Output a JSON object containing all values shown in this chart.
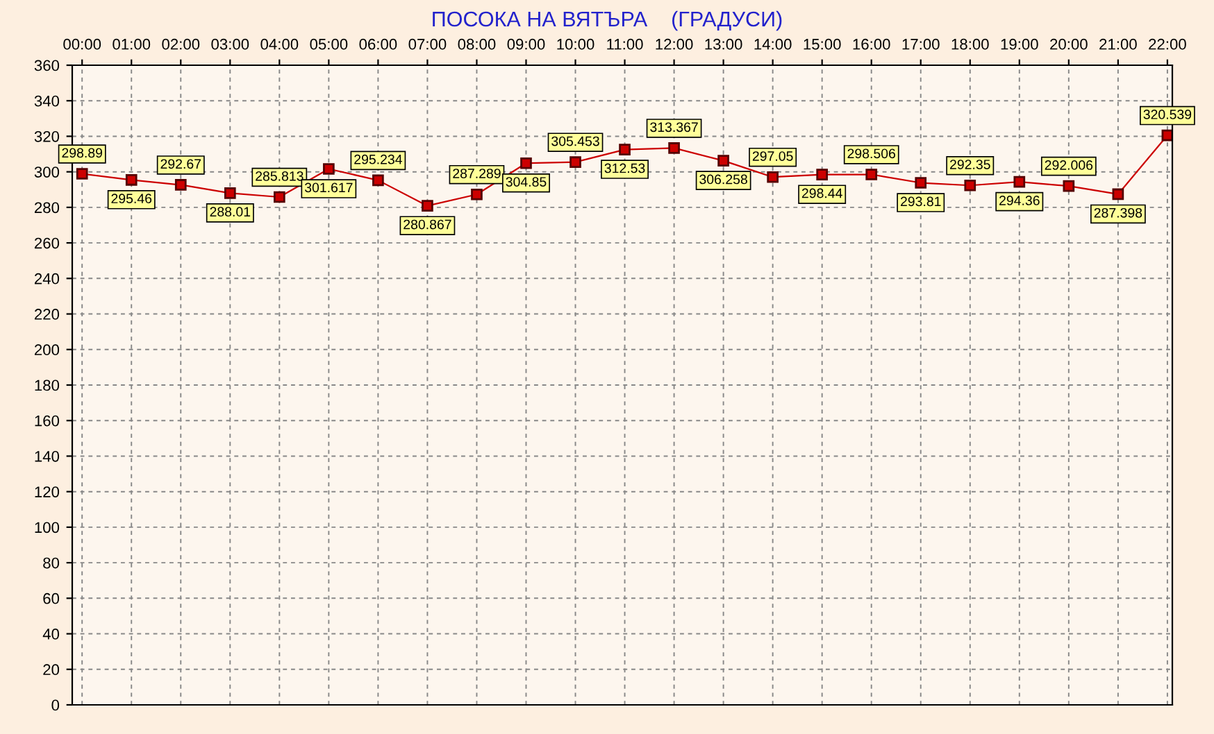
{
  "chart_data": {
    "type": "line",
    "title": "ПОСОКА НА ВЯТЪРА    (ГРАДУСИ)",
    "categories": [
      "00:00",
      "01:00",
      "02:00",
      "03:00",
      "04:00",
      "05:00",
      "06:00",
      "07:00",
      "08:00",
      "09:00",
      "10:00",
      "11:00",
      "12:00",
      "13:00",
      "14:00",
      "15:00",
      "16:00",
      "17:00",
      "18:00",
      "19:00",
      "20:00",
      "21:00",
      "22:00"
    ],
    "series": [
      {
        "color": "#cc0000",
        "values": [
          298.89,
          295.46,
          292.67,
          288.01,
          285.813,
          301.617,
          295.234,
          280.867,
          287.289,
          304.85,
          305.453,
          312.53,
          313.367,
          306.258,
          297.05,
          298.44,
          298.506,
          293.81,
          292.35,
          294.36,
          292.006,
          287.398,
          320.539
        ]
      }
    ],
    "ylim": [
      0,
      360
    ],
    "yticks": [
      0,
      20,
      40,
      60,
      80,
      100,
      120,
      140,
      160,
      180,
      200,
      220,
      240,
      260,
      280,
      300,
      320,
      340,
      360
    ],
    "grid": true,
    "marker": "square",
    "line_style": "solid",
    "data_labels": true
  }
}
